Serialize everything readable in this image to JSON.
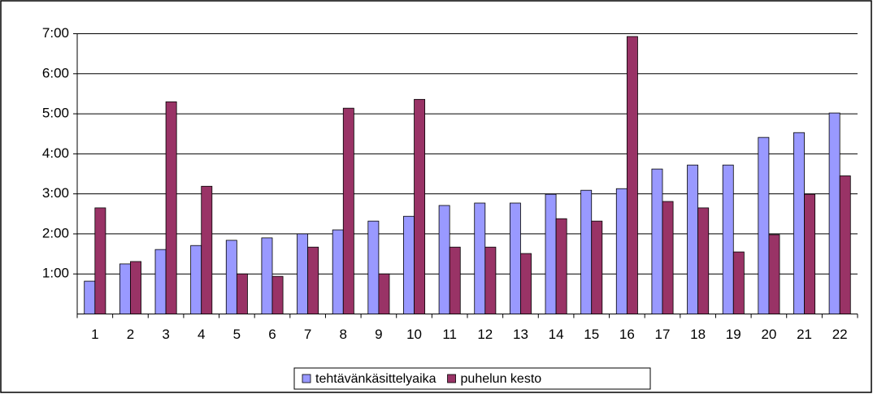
{
  "chart_data": {
    "type": "bar",
    "categories": [
      "1",
      "2",
      "3",
      "4",
      "5",
      "6",
      "7",
      "8",
      "9",
      "10",
      "11",
      "12",
      "13",
      "14",
      "15",
      "16",
      "17",
      "18",
      "19",
      "20",
      "21",
      "22"
    ],
    "series": [
      {
        "name": "tehtävänkäsittelyaika",
        "color": "#9999ff",
        "values": [
          0.82,
          1.25,
          1.61,
          1.71,
          1.84,
          1.9,
          2.0,
          2.1,
          2.32,
          2.44,
          2.71,
          2.77,
          2.77,
          2.99,
          3.09,
          3.13,
          3.62,
          3.72,
          3.72,
          4.41,
          4.53,
          5.02
        ]
      },
      {
        "name": "puhelun kesto",
        "color": "#993366",
        "values": [
          2.65,
          1.31,
          5.3,
          3.19,
          1.0,
          0.94,
          1.67,
          5.14,
          1.0,
          5.36,
          1.67,
          1.67,
          1.51,
          2.38,
          2.32,
          6.93,
          2.81,
          2.65,
          1.55,
          1.98,
          2.99,
          3.45
        ]
      }
    ],
    "ylim": [
      0,
      7
    ],
    "yticks": [
      {
        "value": 1,
        "label": "1:00"
      },
      {
        "value": 2,
        "label": "2:00"
      },
      {
        "value": 3,
        "label": "3:00"
      },
      {
        "value": 4,
        "label": "4:00"
      },
      {
        "value": 5,
        "label": "5:00"
      },
      {
        "value": 6,
        "label": "6:00"
      },
      {
        "value": 7,
        "label": "7:00"
      }
    ],
    "grid": true,
    "legend": "bottom"
  }
}
